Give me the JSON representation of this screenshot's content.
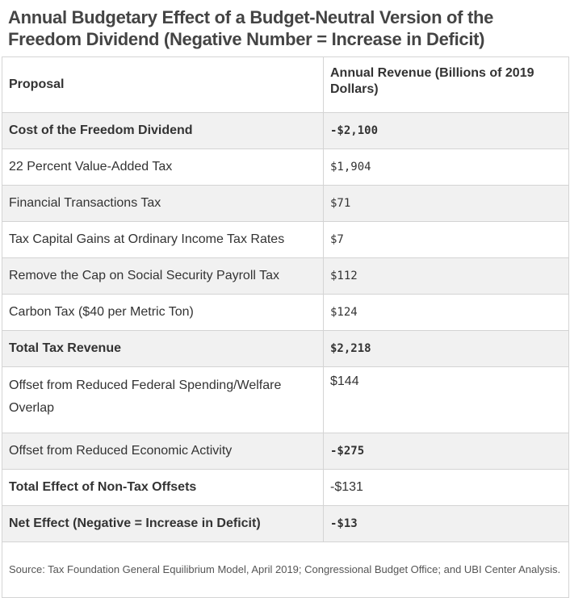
{
  "title": "Annual Budgetary Effect of a Budget-Neutral Version of the Freedom Dividend (Negative Number = Increase in Deficit)",
  "table": {
    "headers": [
      "Proposal",
      "Annual Revenue (Billions of 2019 Dollars)"
    ],
    "rows": [
      {
        "proposal": "Cost of the Freedom Dividend",
        "value": "-$2,100"
      },
      {
        "proposal": "22 Percent Value-Added Tax",
        "value": "$1,904"
      },
      {
        "proposal": "Financial Transactions Tax",
        "value": "$71"
      },
      {
        "proposal": "Tax Capital Gains at Ordinary Income Tax Rates",
        "value": "$7"
      },
      {
        "proposal": "Remove the Cap on Social Security Payroll Tax",
        "value": "$112"
      },
      {
        "proposal": "Carbon Tax ($40 per Metric Ton)",
        "value": "$124"
      },
      {
        "proposal": "Total Tax Revenue",
        "value": "$2,218"
      },
      {
        "proposal": "Offset from Reduced Federal Spending/Welfare Overlap",
        "value": "$144"
      },
      {
        "proposal": "Offset from Reduced Economic Activity",
        "value": "-$275"
      },
      {
        "proposal": "Total Effect of Non-Tax Offsets",
        "value": "-$131"
      },
      {
        "proposal": "Net Effect (Negative = Increase in Deficit)",
        "value": "-$13"
      }
    ],
    "source": "Source: Tax Foundation General Equilibrium Model, April 2019; Congressional Budget Office; and UBI Center Analysis."
  },
  "colors": {
    "shade": "#f1f1f1",
    "border": "#d4d4d4",
    "text": "#333333",
    "title": "#444444"
  }
}
